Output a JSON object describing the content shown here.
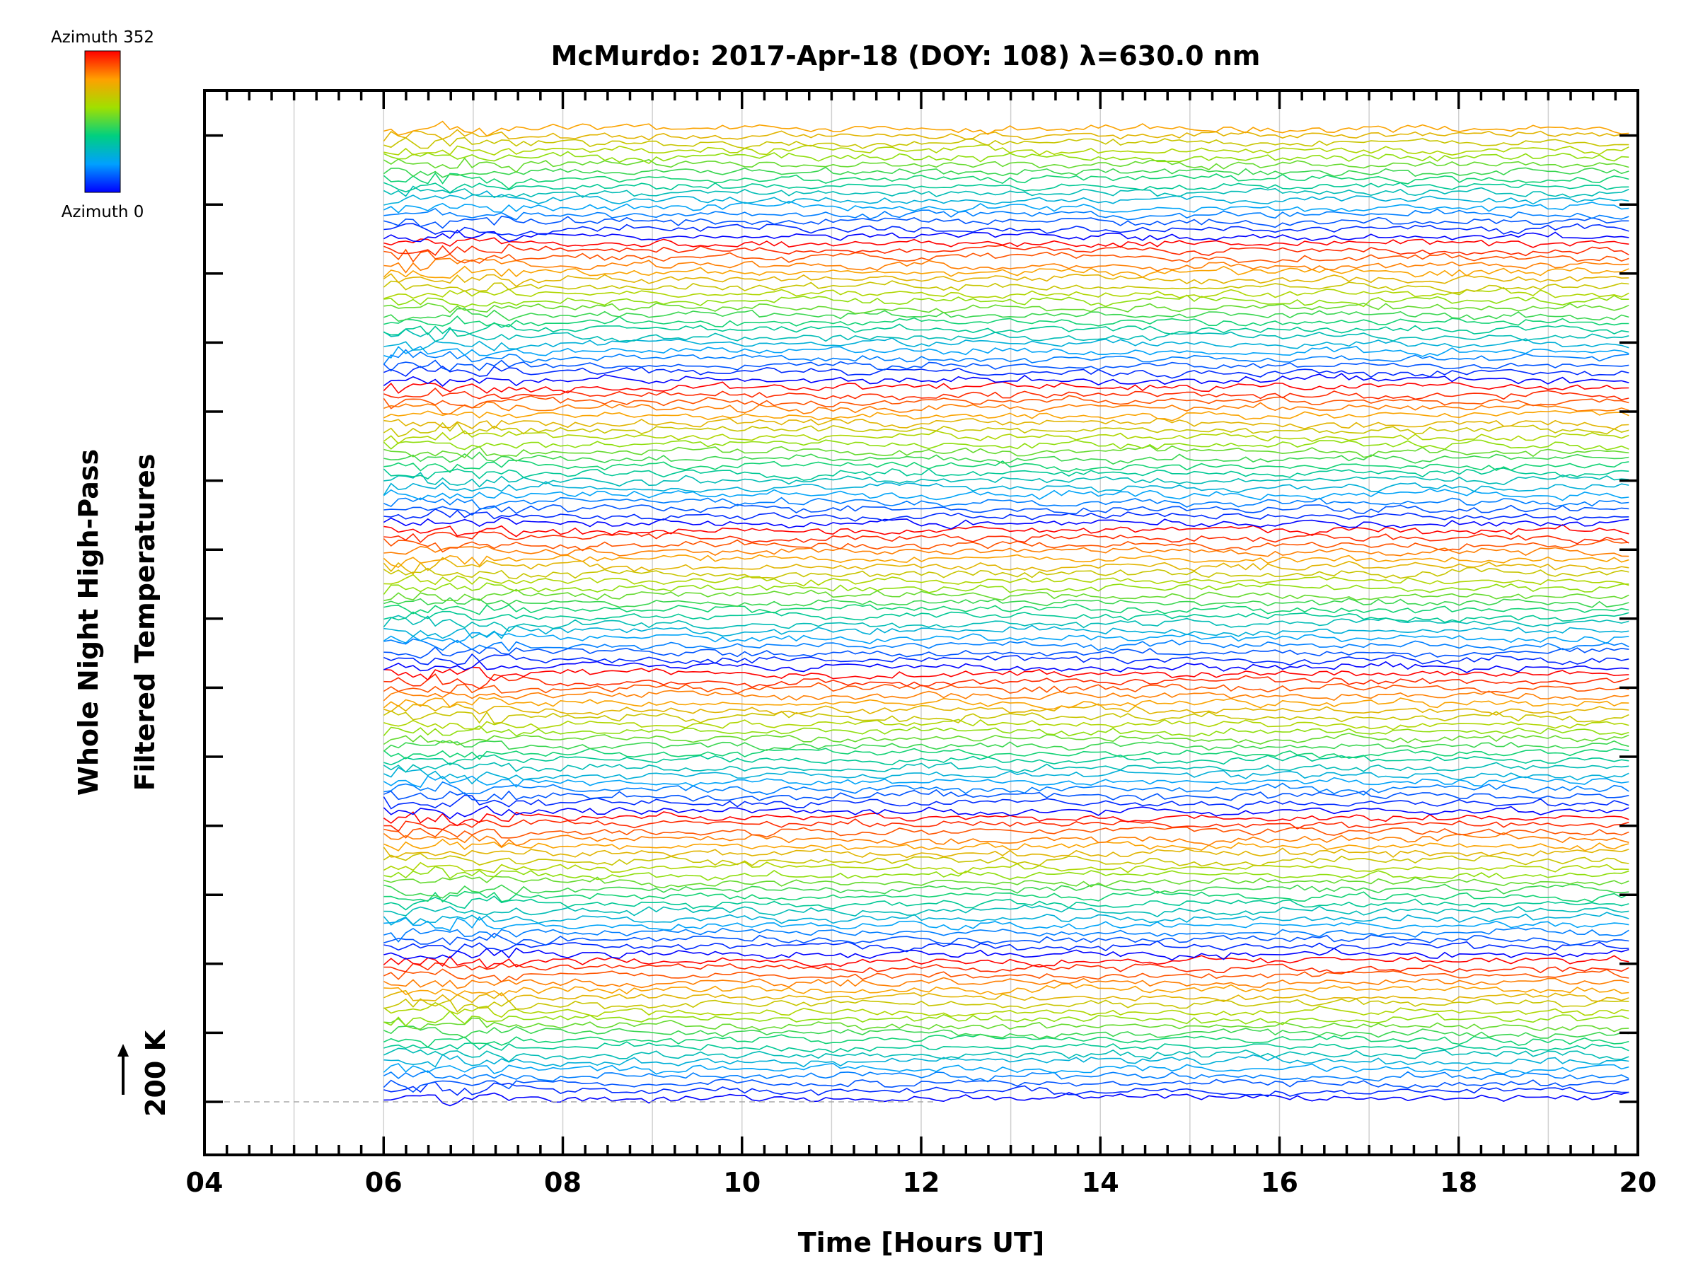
{
  "chart_data": {
    "type": "line",
    "title": "McMurdo: 2017-Apr-18 (DOY: 108) λ=630.0 nm",
    "xlabel": "Time [Hours UT]",
    "ylabel_line1": "Whole Night High-Pass",
    "ylabel_line2": "Filtered Temperatures",
    "scale_label": "200 K",
    "xlim": [
      4,
      20
    ],
    "x_ticks": [
      "04",
      "06",
      "08",
      "10",
      "12",
      "14",
      "16",
      "18",
      "20"
    ],
    "x_start": 6,
    "x_end": 19.9,
    "colorbar": {
      "top_label": "Azimuth 352",
      "bottom_label": "Azimuth 0",
      "min": 0,
      "max": 352
    },
    "series_count": 136,
    "azimuth_cycles": 7,
    "grid": true,
    "colors": {
      "axis": "#000000",
      "grid": "#d0d0d0"
    }
  }
}
